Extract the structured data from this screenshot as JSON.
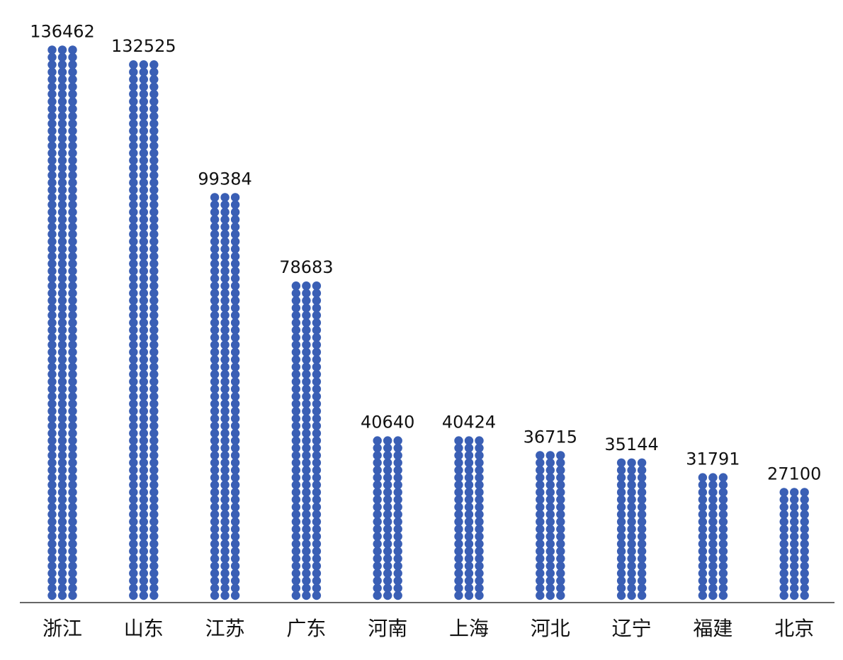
{
  "chart_data": {
    "type": "bar",
    "style": "dot-column",
    "categories": [
      "浙江",
      "山东",
      "江苏",
      "广东",
      "河南",
      "上海",
      "河北",
      "辽宁",
      "福建",
      "北京"
    ],
    "values": [
      136462,
      132525,
      99384,
      78683,
      40640,
      40424,
      36715,
      35144,
      31791,
      27100
    ],
    "data_labels": [
      "136462",
      "132525",
      "99384",
      "78683",
      "40640",
      "40424",
      "36715",
      "35144",
      "31791",
      "27100"
    ],
    "ylim": [
      0,
      136462
    ],
    "grid": false,
    "legend": "none",
    "colors": {
      "dot": "#3a5fb5",
      "axis": "#333333",
      "text": "#111111"
    }
  }
}
